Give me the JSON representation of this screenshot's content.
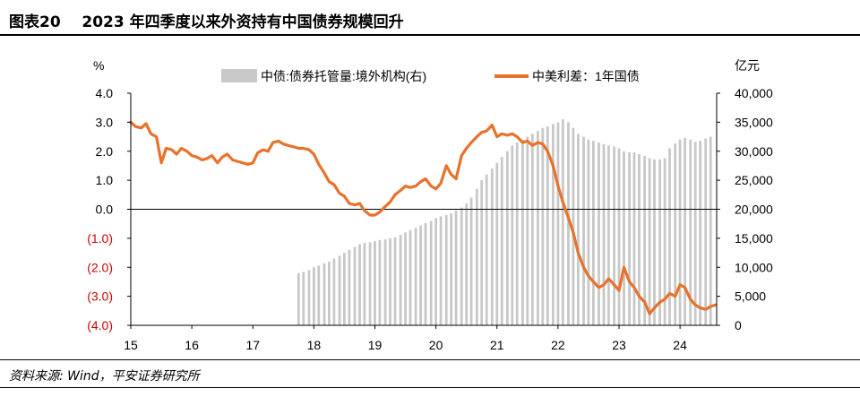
{
  "header": {
    "figure_label": "图表20",
    "title": "2023 年四季度以来外资持有中国债券规模回升"
  },
  "footer": {
    "source": "资料来源: Wind，平安证券研究所"
  },
  "colors": {
    "line": "#E8722B",
    "bars": "#C8C8C8",
    "negative_tick": "#CC0000",
    "axis": "#000000"
  },
  "chart_data": {
    "type": "bar+line",
    "left_axis": {
      "unit": "%",
      "ylim": [
        -4.0,
        4.0
      ],
      "ticks": [
        {
          "value": 4.0,
          "label": "4.0"
        },
        {
          "value": 3.0,
          "label": "3.0"
        },
        {
          "value": 2.0,
          "label": "2.0"
        },
        {
          "value": 1.0,
          "label": "1.0"
        },
        {
          "value": 0.0,
          "label": "0.0"
        },
        {
          "value": -1.0,
          "label": "(1.0)"
        },
        {
          "value": -2.0,
          "label": "(2.0)"
        },
        {
          "value": -3.0,
          "label": "(3.0)"
        },
        {
          "value": -4.0,
          "label": "(4.0)"
        }
      ]
    },
    "right_axis": {
      "unit": "亿元",
      "ylim": [
        0,
        40000
      ],
      "ticks": [
        {
          "value": 40000,
          "label": "40,000"
        },
        {
          "value": 35000,
          "label": "35,000"
        },
        {
          "value": 30000,
          "label": "30,000"
        },
        {
          "value": 25000,
          "label": "25,000"
        },
        {
          "value": 20000,
          "label": "20,000"
        },
        {
          "value": 15000,
          "label": "15,000"
        },
        {
          "value": 10000,
          "label": "10,000"
        },
        {
          "value": 5000,
          "label": "5,000"
        },
        {
          "value": 0,
          "label": "0"
        }
      ]
    },
    "x_axis": {
      "xlim": [
        2015.0,
        2024.6
      ],
      "ticks": [
        {
          "value": 2015,
          "label": "15"
        },
        {
          "value": 2016,
          "label": "16"
        },
        {
          "value": 2017,
          "label": "17"
        },
        {
          "value": 2018,
          "label": "18"
        },
        {
          "value": 2019,
          "label": "19"
        },
        {
          "value": 2020,
          "label": "20"
        },
        {
          "value": 2021,
          "label": "21"
        },
        {
          "value": 2022,
          "label": "22"
        },
        {
          "value": 2023,
          "label": "23"
        },
        {
          "value": 2024,
          "label": "24"
        }
      ]
    },
    "legend": {
      "position": "top",
      "bar_label": "中债:债券托管量:境外机构(右)",
      "line_label": "中美利差：1年国债"
    },
    "bar_series": {
      "name": "中债:债券托管量:境外机构(右)",
      "axis": "right",
      "points": [
        [
          2017.75,
          9000
        ],
        [
          2017.83,
          9200
        ],
        [
          2017.92,
          9500
        ],
        [
          2018.0,
          10000
        ],
        [
          2018.08,
          10300
        ],
        [
          2018.17,
          10700
        ],
        [
          2018.25,
          11000
        ],
        [
          2018.33,
          11500
        ],
        [
          2018.42,
          12000
        ],
        [
          2018.5,
          12500
        ],
        [
          2018.58,
          13000
        ],
        [
          2018.67,
          13500
        ],
        [
          2018.75,
          14000
        ],
        [
          2018.83,
          14200
        ],
        [
          2018.92,
          14300
        ],
        [
          2019.0,
          14500
        ],
        [
          2019.08,
          14700
        ],
        [
          2019.17,
          14800
        ],
        [
          2019.25,
          15000
        ],
        [
          2019.33,
          15200
        ],
        [
          2019.42,
          15600
        ],
        [
          2019.5,
          16000
        ],
        [
          2019.58,
          16400
        ],
        [
          2019.67,
          16800
        ],
        [
          2019.75,
          17200
        ],
        [
          2019.83,
          17600
        ],
        [
          2019.92,
          18000
        ],
        [
          2020.0,
          18500
        ],
        [
          2020.08,
          18800
        ],
        [
          2020.17,
          19000
        ],
        [
          2020.25,
          19300
        ],
        [
          2020.33,
          19800
        ],
        [
          2020.42,
          20300
        ],
        [
          2020.5,
          21000
        ],
        [
          2020.58,
          22000
        ],
        [
          2020.67,
          23500
        ],
        [
          2020.75,
          25000
        ],
        [
          2020.83,
          26000
        ],
        [
          2020.92,
          27000
        ],
        [
          2021.0,
          28000
        ],
        [
          2021.08,
          29000
        ],
        [
          2021.17,
          30000
        ],
        [
          2021.25,
          31000
        ],
        [
          2021.33,
          31500
        ],
        [
          2021.42,
          32000
        ],
        [
          2021.5,
          32500
        ],
        [
          2021.58,
          33000
        ],
        [
          2021.67,
          33500
        ],
        [
          2021.75,
          34000
        ],
        [
          2021.83,
          34300
        ],
        [
          2021.92,
          34700
        ],
        [
          2022.0,
          35000
        ],
        [
          2022.08,
          35500
        ],
        [
          2022.17,
          35000
        ],
        [
          2022.25,
          34000
        ],
        [
          2022.33,
          33000
        ],
        [
          2022.42,
          32500
        ],
        [
          2022.5,
          32000
        ],
        [
          2022.58,
          31800
        ],
        [
          2022.67,
          31500
        ],
        [
          2022.75,
          31200
        ],
        [
          2022.83,
          31000
        ],
        [
          2022.92,
          30800
        ],
        [
          2023.0,
          30500
        ],
        [
          2023.08,
          30000
        ],
        [
          2023.17,
          29800
        ],
        [
          2023.25,
          29800
        ],
        [
          2023.33,
          29500
        ],
        [
          2023.42,
          29200
        ],
        [
          2023.5,
          28800
        ],
        [
          2023.58,
          28600
        ],
        [
          2023.67,
          28600
        ],
        [
          2023.75,
          28800
        ],
        [
          2023.83,
          30500
        ],
        [
          2023.92,
          31300
        ],
        [
          2024.0,
          32000
        ],
        [
          2024.08,
          32300
        ],
        [
          2024.17,
          32000
        ],
        [
          2024.25,
          31600
        ],
        [
          2024.33,
          31800
        ],
        [
          2024.42,
          32200
        ],
        [
          2024.5,
          32500
        ]
      ]
    },
    "line_series": {
      "name": "中美利差：1年国债",
      "axis": "left",
      "points": [
        [
          2015.0,
          3.0
        ],
        [
          2015.08,
          2.85
        ],
        [
          2015.17,
          2.8
        ],
        [
          2015.25,
          2.95
        ],
        [
          2015.33,
          2.6
        ],
        [
          2015.42,
          2.5
        ],
        [
          2015.5,
          1.6
        ],
        [
          2015.58,
          2.1
        ],
        [
          2015.67,
          2.05
        ],
        [
          2015.75,
          1.9
        ],
        [
          2015.83,
          2.1
        ],
        [
          2015.92,
          2.0
        ],
        [
          2016.0,
          1.85
        ],
        [
          2016.08,
          1.8
        ],
        [
          2016.17,
          1.7
        ],
        [
          2016.25,
          1.75
        ],
        [
          2016.33,
          1.85
        ],
        [
          2016.42,
          1.6
        ],
        [
          2016.5,
          1.8
        ],
        [
          2016.58,
          1.9
        ],
        [
          2016.67,
          1.7
        ],
        [
          2016.75,
          1.65
        ],
        [
          2016.83,
          1.6
        ],
        [
          2016.92,
          1.55
        ],
        [
          2017.0,
          1.6
        ],
        [
          2017.08,
          1.95
        ],
        [
          2017.17,
          2.05
        ],
        [
          2017.25,
          2.0
        ],
        [
          2017.33,
          2.3
        ],
        [
          2017.42,
          2.35
        ],
        [
          2017.5,
          2.25
        ],
        [
          2017.58,
          2.2
        ],
        [
          2017.67,
          2.15
        ],
        [
          2017.75,
          2.1
        ],
        [
          2017.83,
          2.1
        ],
        [
          2017.92,
          2.05
        ],
        [
          2018.0,
          1.9
        ],
        [
          2018.08,
          1.55
        ],
        [
          2018.17,
          1.25
        ],
        [
          2018.25,
          0.95
        ],
        [
          2018.33,
          0.85
        ],
        [
          2018.42,
          0.55
        ],
        [
          2018.5,
          0.45
        ],
        [
          2018.58,
          0.2
        ],
        [
          2018.67,
          0.15
        ],
        [
          2018.75,
          0.2
        ],
        [
          2018.83,
          -0.05
        ],
        [
          2018.92,
          -0.2
        ],
        [
          2019.0,
          -0.2
        ],
        [
          2019.08,
          -0.1
        ],
        [
          2019.17,
          0.1
        ],
        [
          2019.25,
          0.25
        ],
        [
          2019.33,
          0.5
        ],
        [
          2019.42,
          0.65
        ],
        [
          2019.5,
          0.8
        ],
        [
          2019.58,
          0.75
        ],
        [
          2019.67,
          0.8
        ],
        [
          2019.75,
          0.95
        ],
        [
          2019.83,
          1.05
        ],
        [
          2019.92,
          0.8
        ],
        [
          2020.0,
          0.7
        ],
        [
          2020.08,
          0.9
        ],
        [
          2020.17,
          1.5
        ],
        [
          2020.25,
          1.2
        ],
        [
          2020.33,
          1.05
        ],
        [
          2020.42,
          1.85
        ],
        [
          2020.5,
          2.1
        ],
        [
          2020.58,
          2.3
        ],
        [
          2020.67,
          2.5
        ],
        [
          2020.75,
          2.65
        ],
        [
          2020.83,
          2.7
        ],
        [
          2020.92,
          2.9
        ],
        [
          2021.0,
          2.5
        ],
        [
          2021.08,
          2.6
        ],
        [
          2021.17,
          2.55
        ],
        [
          2021.25,
          2.6
        ],
        [
          2021.33,
          2.5
        ],
        [
          2021.42,
          2.3
        ],
        [
          2021.5,
          2.35
        ],
        [
          2021.58,
          2.2
        ],
        [
          2021.67,
          2.3
        ],
        [
          2021.75,
          2.25
        ],
        [
          2021.83,
          2.0
        ],
        [
          2021.92,
          1.5
        ],
        [
          2022.0,
          0.8
        ],
        [
          2022.08,
          0.25
        ],
        [
          2022.17,
          -0.3
        ],
        [
          2022.25,
          -0.8
        ],
        [
          2022.33,
          -1.5
        ],
        [
          2022.42,
          -2.0
        ],
        [
          2022.5,
          -2.3
        ],
        [
          2022.58,
          -2.5
        ],
        [
          2022.67,
          -2.7
        ],
        [
          2022.75,
          -2.6
        ],
        [
          2022.83,
          -2.4
        ],
        [
          2022.92,
          -2.6
        ],
        [
          2023.0,
          -2.8
        ],
        [
          2023.08,
          -2.0
        ],
        [
          2023.17,
          -2.5
        ],
        [
          2023.25,
          -2.7
        ],
        [
          2023.33,
          -3.0
        ],
        [
          2023.42,
          -3.2
        ],
        [
          2023.5,
          -3.6
        ],
        [
          2023.58,
          -3.4
        ],
        [
          2023.67,
          -3.2
        ],
        [
          2023.75,
          -3.1
        ],
        [
          2023.83,
          -2.9
        ],
        [
          2023.92,
          -3.0
        ],
        [
          2024.0,
          -2.6
        ],
        [
          2024.08,
          -2.7
        ],
        [
          2024.17,
          -3.1
        ],
        [
          2024.25,
          -3.3
        ],
        [
          2024.33,
          -3.4
        ],
        [
          2024.42,
          -3.45
        ],
        [
          2024.5,
          -3.35
        ],
        [
          2024.58,
          -3.3
        ]
      ]
    }
  }
}
